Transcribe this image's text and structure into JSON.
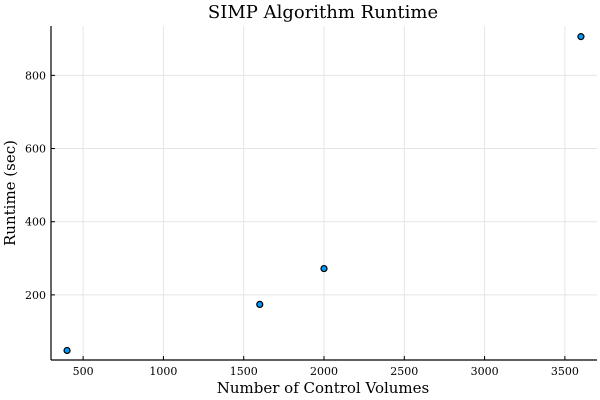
{
  "chart_data": {
    "type": "scatter",
    "title": "SIMP Algorithm Runtime",
    "xlabel": "Number of Control Volumes",
    "ylabel": "Runtime (sec)",
    "xlim": [
      300,
      3700
    ],
    "ylim": [
      22,
      935
    ],
    "xticks": [
      500,
      1000,
      1500,
      2000,
      2500,
      3000,
      3500
    ],
    "yticks": [
      200,
      400,
      600,
      800
    ],
    "grid": true,
    "legend": "none",
    "marker_color": "#009AFA",
    "marker_edge_color": "#000000",
    "series": [
      {
        "x": [
          400,
          1600,
          2000,
          3600
        ],
        "y": [
          48,
          174,
          272,
          906
        ]
      }
    ]
  }
}
